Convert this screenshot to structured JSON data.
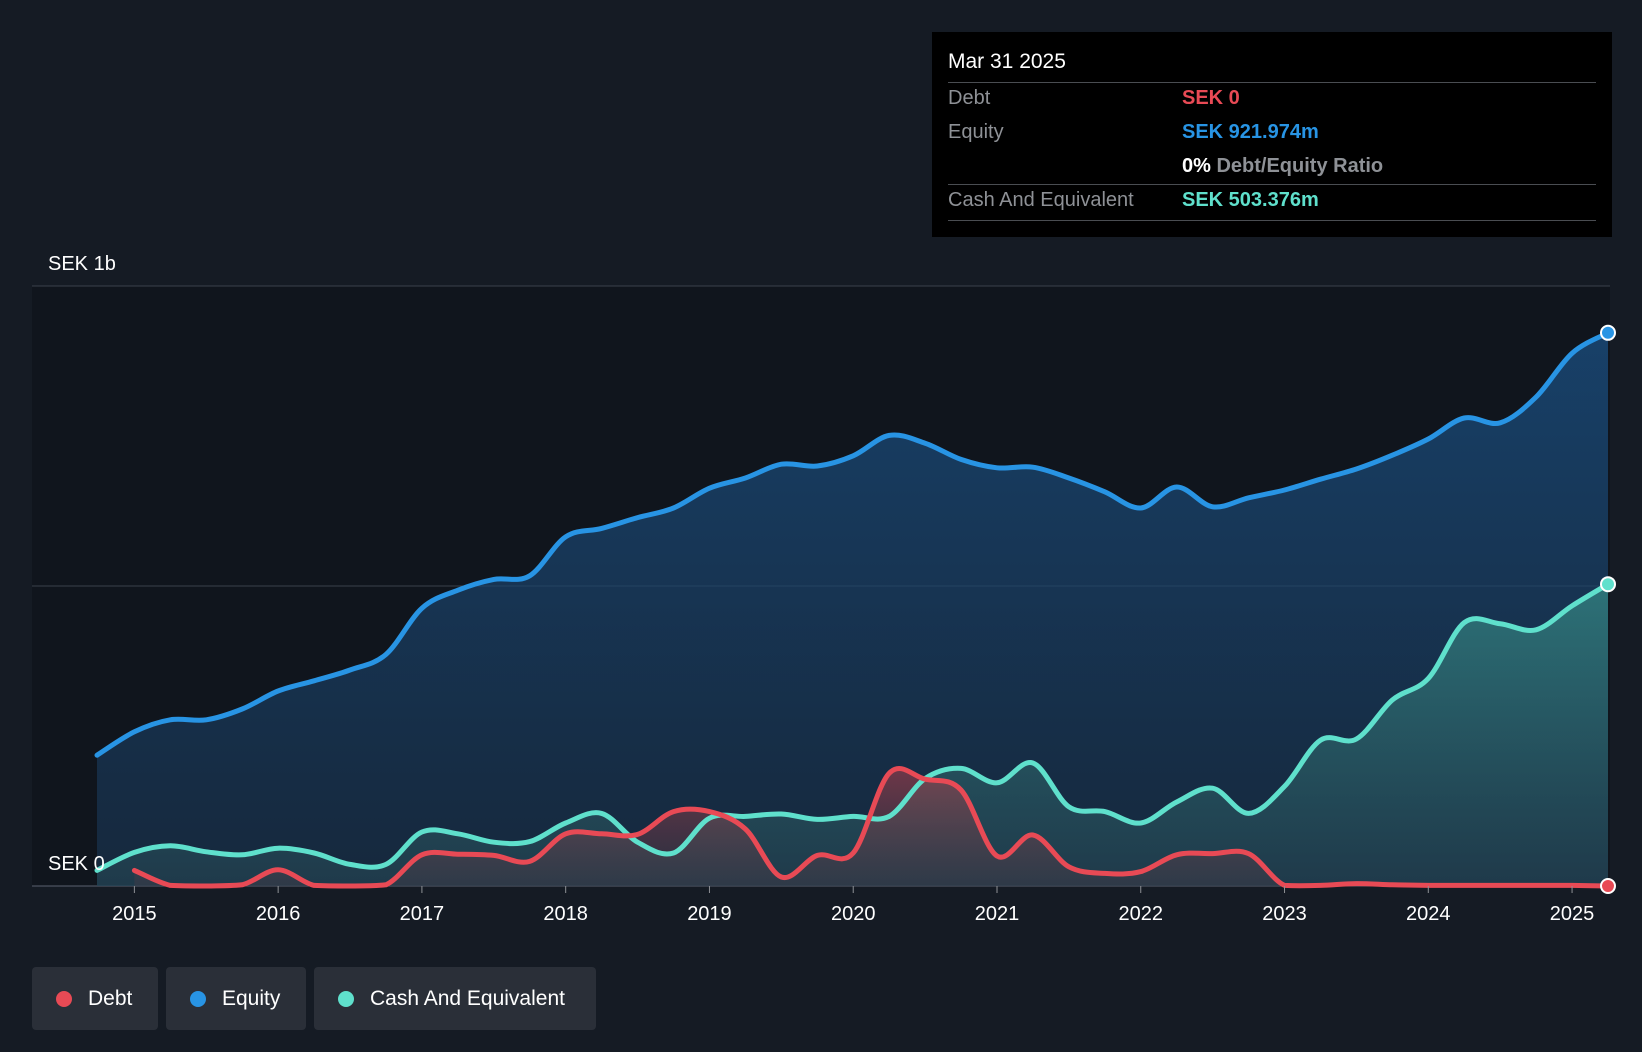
{
  "colors": {
    "background": "#151b24",
    "debt": "#e84a55",
    "equity": "#2894e4",
    "cash": "#5fe0cc",
    "grid": "#3a414b",
    "text": "#ffffff",
    "muted": "#8e9196"
  },
  "tooltip": {
    "date": "Mar 31 2025",
    "rows": [
      {
        "label": "Debt",
        "value": "SEK 0"
      },
      {
        "label": "Equity",
        "value": "SEK 921.974m"
      },
      {
        "ratio_value": "0%",
        "ratio_label": "Debt/Equity Ratio"
      },
      {
        "label": "Cash And Equivalent",
        "value": "SEK 503.376m"
      }
    ]
  },
  "legend": {
    "items": [
      {
        "label": "Debt",
        "icon": "circle-dot-icon"
      },
      {
        "label": "Equity",
        "icon": "circle-dot-icon"
      },
      {
        "label": "Cash And Equivalent",
        "icon": "circle-dot-icon"
      }
    ]
  },
  "chart_data": {
    "type": "area",
    "title": "",
    "xlabel": "",
    "ylabel": "",
    "y_axis_labels": [
      "SEK 1b",
      "SEK 0"
    ],
    "ylim": [
      0,
      1000
    ],
    "xlim": [
      2014.74,
      2025.25
    ],
    "x_ticks": [
      "2015",
      "2016",
      "2017",
      "2018",
      "2019",
      "2020",
      "2021",
      "2022",
      "2023",
      "2024",
      "2025"
    ],
    "gridlines": [
      0,
      500,
      1000
    ],
    "series": [
      {
        "name": "Equity",
        "x": [
          2014.74,
          2015.0,
          2015.25,
          2015.5,
          2015.75,
          2016.0,
          2016.25,
          2016.5,
          2016.75,
          2017.0,
          2017.25,
          2017.5,
          2017.75,
          2018.0,
          2018.25,
          2018.5,
          2018.75,
          2019.0,
          2019.25,
          2019.5,
          2019.75,
          2020.0,
          2020.25,
          2020.5,
          2020.75,
          2021.0,
          2021.25,
          2021.5,
          2021.75,
          2022.0,
          2022.25,
          2022.5,
          2022.75,
          2023.0,
          2023.25,
          2023.5,
          2023.75,
          2024.0,
          2024.25,
          2024.5,
          2024.75,
          2025.0,
          2025.25
        ],
        "values": [
          218,
          257,
          277,
          277,
          295,
          325,
          342,
          360,
          386,
          463,
          493,
          511,
          517,
          582,
          596,
          614,
          630,
          663,
          680,
          703,
          700,
          717,
          751,
          738,
          711,
          697,
          698,
          680,
          657,
          630,
          665,
          632,
          647,
          660,
          678,
          695,
          718,
          745,
          780,
          772,
          815,
          888,
          922
        ]
      },
      {
        "name": "Cash And Equivalent",
        "x": [
          2014.74,
          2015.0,
          2015.25,
          2015.5,
          2015.75,
          2016.0,
          2016.25,
          2016.5,
          2016.75,
          2017.0,
          2017.25,
          2017.5,
          2017.75,
          2018.0,
          2018.25,
          2018.5,
          2018.75,
          2019.0,
          2019.25,
          2019.5,
          2019.75,
          2020.0,
          2020.25,
          2020.5,
          2020.75,
          2021.0,
          2021.25,
          2021.5,
          2021.75,
          2022.0,
          2022.25,
          2022.5,
          2022.75,
          2023.0,
          2023.25,
          2023.5,
          2023.75,
          2024.0,
          2024.25,
          2024.5,
          2024.75,
          2025.0,
          2025.25
        ],
        "values": [
          26,
          56,
          67,
          57,
          52,
          63,
          55,
          36,
          36,
          90,
          87,
          73,
          74,
          105,
          121,
          73,
          55,
          113,
          116,
          120,
          111,
          116,
          116,
          179,
          196,
          172,
          205,
          132,
          124,
          105,
          140,
          163,
          121,
          166,
          243,
          245,
          310,
          346,
          439,
          437,
          427,
          467,
          503
        ]
      },
      {
        "name": "Debt",
        "x": [
          2015.0,
          2015.25,
          2015.5,
          2015.75,
          2016.0,
          2016.25,
          2016.5,
          2016.75,
          2017.0,
          2017.25,
          2017.5,
          2017.75,
          2018.0,
          2018.25,
          2018.5,
          2018.75,
          2019.0,
          2019.25,
          2019.5,
          2019.75,
          2020.0,
          2020.25,
          2020.5,
          2020.75,
          2021.0,
          2021.25,
          2021.5,
          2021.75,
          2022.0,
          2022.25,
          2022.5,
          2022.75,
          2023.0,
          2023.25,
          2023.5,
          2023.75,
          2024.0,
          2024.25,
          2024.5,
          2024.75,
          2025.0,
          2025.25
        ],
        "values": [
          26,
          1,
          0,
          2,
          27,
          1,
          0,
          2,
          52,
          53,
          51,
          41,
          87,
          87,
          86,
          124,
          124,
          95,
          15,
          51,
          55,
          188,
          178,
          160,
          50,
          85,
          32,
          21,
          24,
          52,
          54,
          54,
          1,
          1,
          4,
          2,
          1,
          1,
          1,
          1,
          1,
          0
        ]
      }
    ]
  }
}
